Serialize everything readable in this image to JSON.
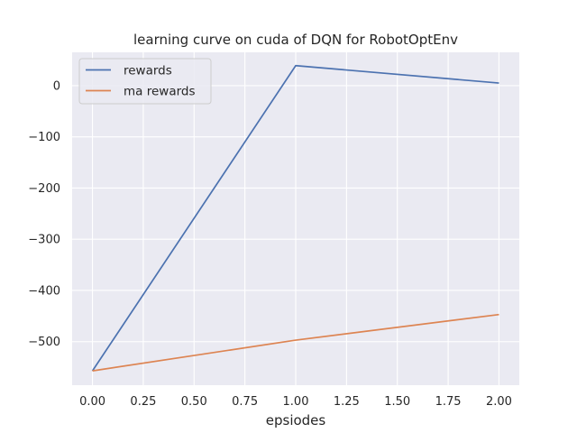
{
  "chart_data": {
    "type": "line",
    "title": "learning curve on cuda of DQN for RobotOptEnv",
    "xlabel": "epsiodes",
    "ylabel": "",
    "x": [
      0,
      1,
      2
    ],
    "xlim": [
      -0.1,
      2.1
    ],
    "ylim": [
      -585,
      65
    ],
    "xticks": [
      0,
      0.25,
      0.5,
      0.75,
      1.0,
      1.25,
      1.5,
      1.75,
      2.0
    ],
    "xtick_labels": [
      "0.00",
      "0.25",
      "0.50",
      "0.75",
      "1.00",
      "1.25",
      "1.50",
      "1.75",
      "2.00"
    ],
    "yticks": [
      0,
      -100,
      -200,
      -300,
      -400,
      -500
    ],
    "ytick_labels": [
      "0",
      "−100",
      "−200",
      "−300",
      "−400",
      "−500"
    ],
    "grid": true,
    "legend_position": "top-left",
    "series": [
      {
        "name": "rewards",
        "color": "#4c72b0",
        "values": [
          -557,
          39,
          5
        ]
      },
      {
        "name": "ma rewards",
        "color": "#dd8452",
        "values": [
          -557,
          -497,
          -447
        ]
      }
    ],
    "colors": {
      "plot_background": "#eaeaf2",
      "grid": "#ffffff"
    }
  }
}
